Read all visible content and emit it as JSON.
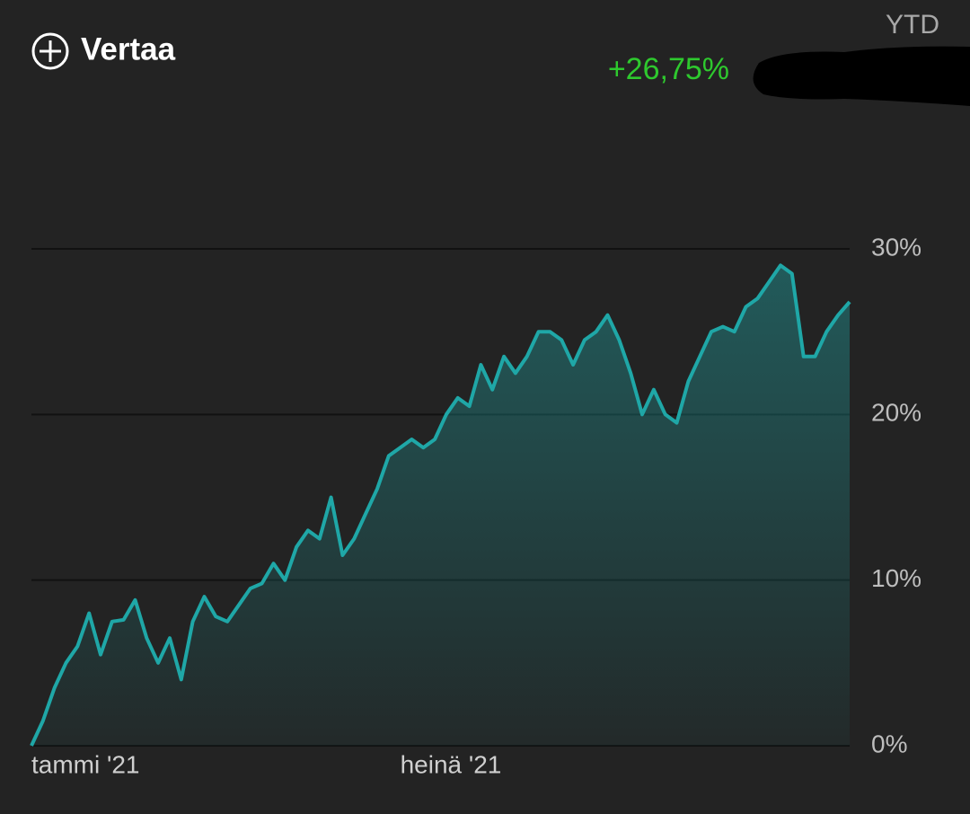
{
  "header": {
    "compare": "Vertaa",
    "period": "YTD",
    "change": "+26,75%"
  },
  "chart_data": {
    "type": "area",
    "categories": [
      "tammi '21",
      null,
      null,
      null,
      null,
      null,
      null,
      null,
      null,
      null,
      null,
      null,
      null,
      null,
      null,
      null,
      null,
      null,
      null,
      null,
      null,
      null,
      null,
      null,
      null,
      null,
      null,
      null,
      null,
      null,
      null,
      null,
      "heinä '21",
      null,
      null,
      null,
      null,
      null,
      null,
      null,
      null,
      null,
      null,
      null,
      null,
      null,
      null,
      null,
      null,
      null,
      null,
      null,
      null,
      null,
      null,
      null,
      null,
      null,
      null,
      null,
      null,
      null,
      null,
      null,
      null,
      null,
      null,
      null,
      null,
      null,
      null,
      null
    ],
    "values": [
      0,
      1.5,
      3.5,
      5,
      6,
      8,
      5.5,
      7.5,
      7.6,
      8.8,
      6.5,
      5,
      6.5,
      4,
      7.5,
      9,
      7.8,
      7.5,
      8.5,
      9.5,
      9.8,
      11,
      10,
      12,
      13,
      12.5,
      15,
      11.5,
      12.5,
      14,
      15.5,
      17.5,
      18,
      18.5,
      18,
      18.5,
      20,
      21,
      20.5,
      23,
      21.5,
      23.5,
      22.5,
      23.5,
      25,
      25,
      24.5,
      23,
      24.5,
      25,
      26,
      24.5,
      22.5,
      20,
      21.5,
      20,
      19.5,
      22,
      23.5,
      25,
      25.3,
      25,
      26.5,
      27,
      28,
      29,
      28.5,
      23.5,
      23.5,
      25,
      26,
      26.8
    ],
    "color": "#1fa7a7",
    "ylim": [
      0,
      30
    ],
    "yticks": [
      {
        "value": 0,
        "label": "0%"
      },
      {
        "value": 10,
        "label": "10%"
      },
      {
        "value": 20,
        "label": "20%"
      },
      {
        "value": 30,
        "label": "30%"
      }
    ],
    "grid": true
  }
}
